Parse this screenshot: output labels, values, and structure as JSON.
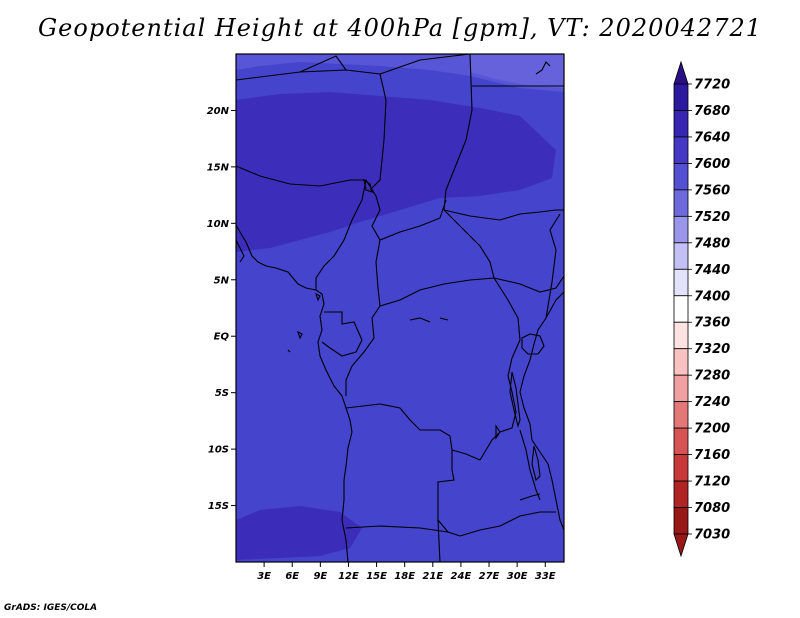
{
  "title": "Geopotential Height at 400hPa [gpm], VT: 2020042721",
  "footer": "GrADS: IGES/COLA",
  "map": {
    "lat_range": [
      -20,
      25
    ],
    "lon_range": [
      0,
      35
    ],
    "lat_ticks": [
      "20N",
      "15N",
      "10N",
      "5N",
      "EQ",
      "5S",
      "10S",
      "15S"
    ],
    "lat_tick_values": [
      20,
      15,
      10,
      5,
      0,
      -5,
      -10,
      -15
    ],
    "lon_ticks": [
      "3E",
      "6E",
      "9E",
      "12E",
      "15E",
      "18E",
      "21E",
      "24E",
      "27E",
      "30E",
      "33E"
    ],
    "lon_tick_values": [
      3,
      6,
      9,
      12,
      15,
      18,
      21,
      24,
      27,
      30,
      33
    ],
    "field_colors": {
      "base": "#4444cc",
      "high": "#3a2bb8",
      "low": "#5c5ad8"
    }
  },
  "colorbar": {
    "labels": [
      "7720",
      "7680",
      "7640",
      "7600",
      "7560",
      "7520",
      "7480",
      "7440",
      "7400",
      "7360",
      "7320",
      "7280",
      "7240",
      "7200",
      "7160",
      "7120",
      "7080",
      "7030"
    ],
    "colors": [
      "#2a0e86",
      "#2c1a9e",
      "#3626b2",
      "#4438c4",
      "#5450d2",
      "#6e6adc",
      "#9a96ea",
      "#c2c0f4",
      "#e2e2fa",
      "#ffffff",
      "#fde2e2",
      "#f8c2c2",
      "#f0a0a0",
      "#e47878",
      "#d85454",
      "#c83838",
      "#b02424",
      "#981818"
    ],
    "colors_bottom_to_top": true
  }
}
